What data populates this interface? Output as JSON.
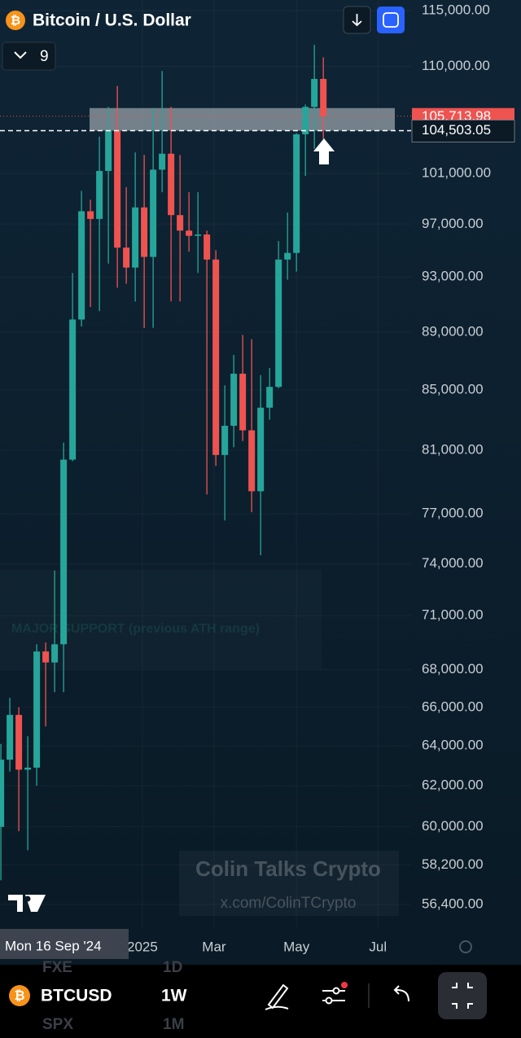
{
  "chart_data": {
    "type": "candlestick",
    "title": "Bitcoin / U.S. Dollar",
    "x": [
      0,
      1,
      2,
      3,
      4,
      5,
      6,
      7,
      8,
      9,
      10,
      11,
      12,
      13,
      14,
      15,
      16,
      17,
      18,
      19,
      20,
      21,
      22,
      23,
      24,
      25,
      26,
      27,
      28,
      29,
      30,
      31,
      32,
      33,
      34,
      35,
      36
    ],
    "open": [
      60000,
      63300,
      65600,
      62800,
      62900,
      69000,
      68400,
      69400,
      80400,
      89900,
      98000,
      97400,
      101200,
      104500,
      95200,
      93700,
      98300,
      94500,
      101300,
      102600,
      97700,
      96500,
      96100,
      96200,
      94300,
      80700,
      82600,
      86100,
      82300,
      78400,
      83800,
      85200,
      94300,
      94800,
      104200,
      106500,
      108900
    ],
    "high": [
      64100,
      66500,
      66000,
      64500,
      69400,
      69500,
      73600,
      81500,
      93300,
      99600,
      98900,
      104000,
      106500,
      108300,
      99900,
      102700,
      102500,
      106400,
      109600,
      106500,
      102500,
      99500,
      99500,
      96500,
      95000,
      85300,
      87400,
      88800,
      88500,
      86000,
      86500,
      95700,
      97900,
      104300,
      106700,
      111900,
      110800
    ],
    "low": [
      57500,
      62700,
      59800,
      58900,
      62000,
      65000,
      66800,
      66800,
      80300,
      89400,
      90800,
      90500,
      94000,
      92200,
      92500,
      91200,
      89300,
      89300,
      99500,
      91200,
      91200,
      94900,
      93300,
      78200,
      80000,
      76600,
      81200,
      81600,
      77100,
      74500,
      83000,
      85100,
      92800,
      93400,
      100800,
      103000,
      103800
    ],
    "close": [
      63300,
      65600,
      62800,
      62900,
      69000,
      68400,
      69400,
      80400,
      89900,
      98000,
      97400,
      101200,
      104500,
      95200,
      93700,
      98300,
      94500,
      101300,
      102600,
      97700,
      96500,
      96100,
      96200,
      94300,
      80700,
      82600,
      86100,
      82300,
      78400,
      83800,
      85200,
      94300,
      94800,
      104200,
      106500,
      108900,
      105713.98
    ],
    "up_color": "#26a69a",
    "down_color": "#ef5350",
    "xlim": [
      -0.1,
      45.8
    ],
    "xticks": [
      {
        "value": 15.8,
        "label": "2025"
      },
      {
        "value": 23.8,
        "label": "Mar"
      },
      {
        "value": 33,
        "label": "May"
      },
      {
        "value": 42.1,
        "label": "Jul"
      }
    ],
    "ylim": [
      55350,
      115970
    ],
    "log_scale": true,
    "grid": true,
    "yticks": [
      {
        "value": 115000,
        "label": "115,000.00"
      },
      {
        "value": 110000,
        "label": "110,000.00"
      },
      {
        "value": 101000,
        "label": "101,000.00"
      },
      {
        "value": 97000,
        "label": "97,000.00"
      },
      {
        "value": 93000,
        "label": "93,000.00"
      },
      {
        "value": 89000,
        "label": "89,000.00"
      },
      {
        "value": 85000,
        "label": "85,000.00"
      },
      {
        "value": 81000,
        "label": "81,000.00"
      },
      {
        "value": 77000,
        "label": "77,000.00"
      },
      {
        "value": 74000,
        "label": "74,000.00"
      },
      {
        "value": 71000,
        "label": "71,000.00"
      },
      {
        "value": 68000,
        "label": "68,000.00"
      },
      {
        "value": 66000,
        "label": "66,000.00"
      },
      {
        "value": 64000,
        "label": "64,000.00"
      },
      {
        "value": 62000,
        "label": "62,000.00"
      },
      {
        "value": 60000,
        "label": "60,000.00"
      },
      {
        "value": 58200,
        "label": "58,200.00"
      },
      {
        "value": 56400,
        "label": "56,400.00"
      }
    ],
    "last_price": {
      "value": 105713.98,
      "label": "105,713.98"
    },
    "horizontal_line": {
      "value": 104503.05,
      "label": "104,503.05"
    },
    "zone": [
      104503.05,
      106400
    ],
    "annotation": "MAJOR SUPPORT (previous ATH range)"
  },
  "ui": {
    "indicator_count": "9",
    "crosshair_label": "Mon 16 Sep '24",
    "watermark": [
      "Colin Talks Crypto",
      "x.com/ColinTCrypto"
    ],
    "symbol": "BTCUSD",
    "interval": "1W",
    "menu_behind": [
      "FXE",
      "1D",
      "SPX",
      "1M"
    ]
  }
}
